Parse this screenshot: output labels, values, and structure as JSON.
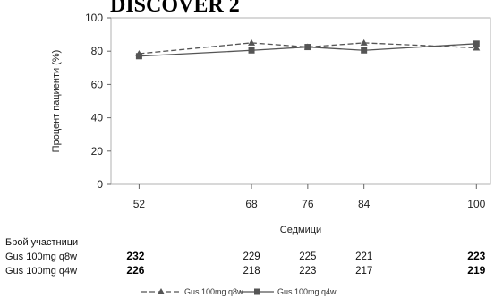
{
  "chart_data": {
    "type": "line",
    "title": "DISCOVER 2",
    "xlabel": "Седмици",
    "ylabel": "Процент пациенти (%)",
    "x": [
      52,
      68,
      76,
      84,
      100
    ],
    "ylim": [
      0,
      100
    ],
    "yticks": [
      0,
      20,
      40,
      60,
      80,
      100
    ],
    "grid": false,
    "legend_position": "bottom",
    "series": [
      {
        "name": "Gus 100mg q8w",
        "marker": "triangle",
        "dashed": true,
        "color": "#555555",
        "values": [
          78.5,
          85,
          82.5,
          85,
          82
        ]
      },
      {
        "name": "Gus 100mg q4w",
        "marker": "square",
        "dashed": false,
        "color": "#555555",
        "values": [
          77,
          80.5,
          82.5,
          80.5,
          84.5
        ]
      }
    ],
    "table": {
      "header": "Брой участници",
      "rows": [
        {
          "label": "Gus 100mg q8w",
          "values": [
            "232",
            "229",
            "225",
            "221",
            "223"
          ]
        },
        {
          "label": "Gus 100mg q4w",
          "values": [
            "226",
            "218",
            "223",
            "217",
            "219"
          ]
        }
      ]
    }
  }
}
